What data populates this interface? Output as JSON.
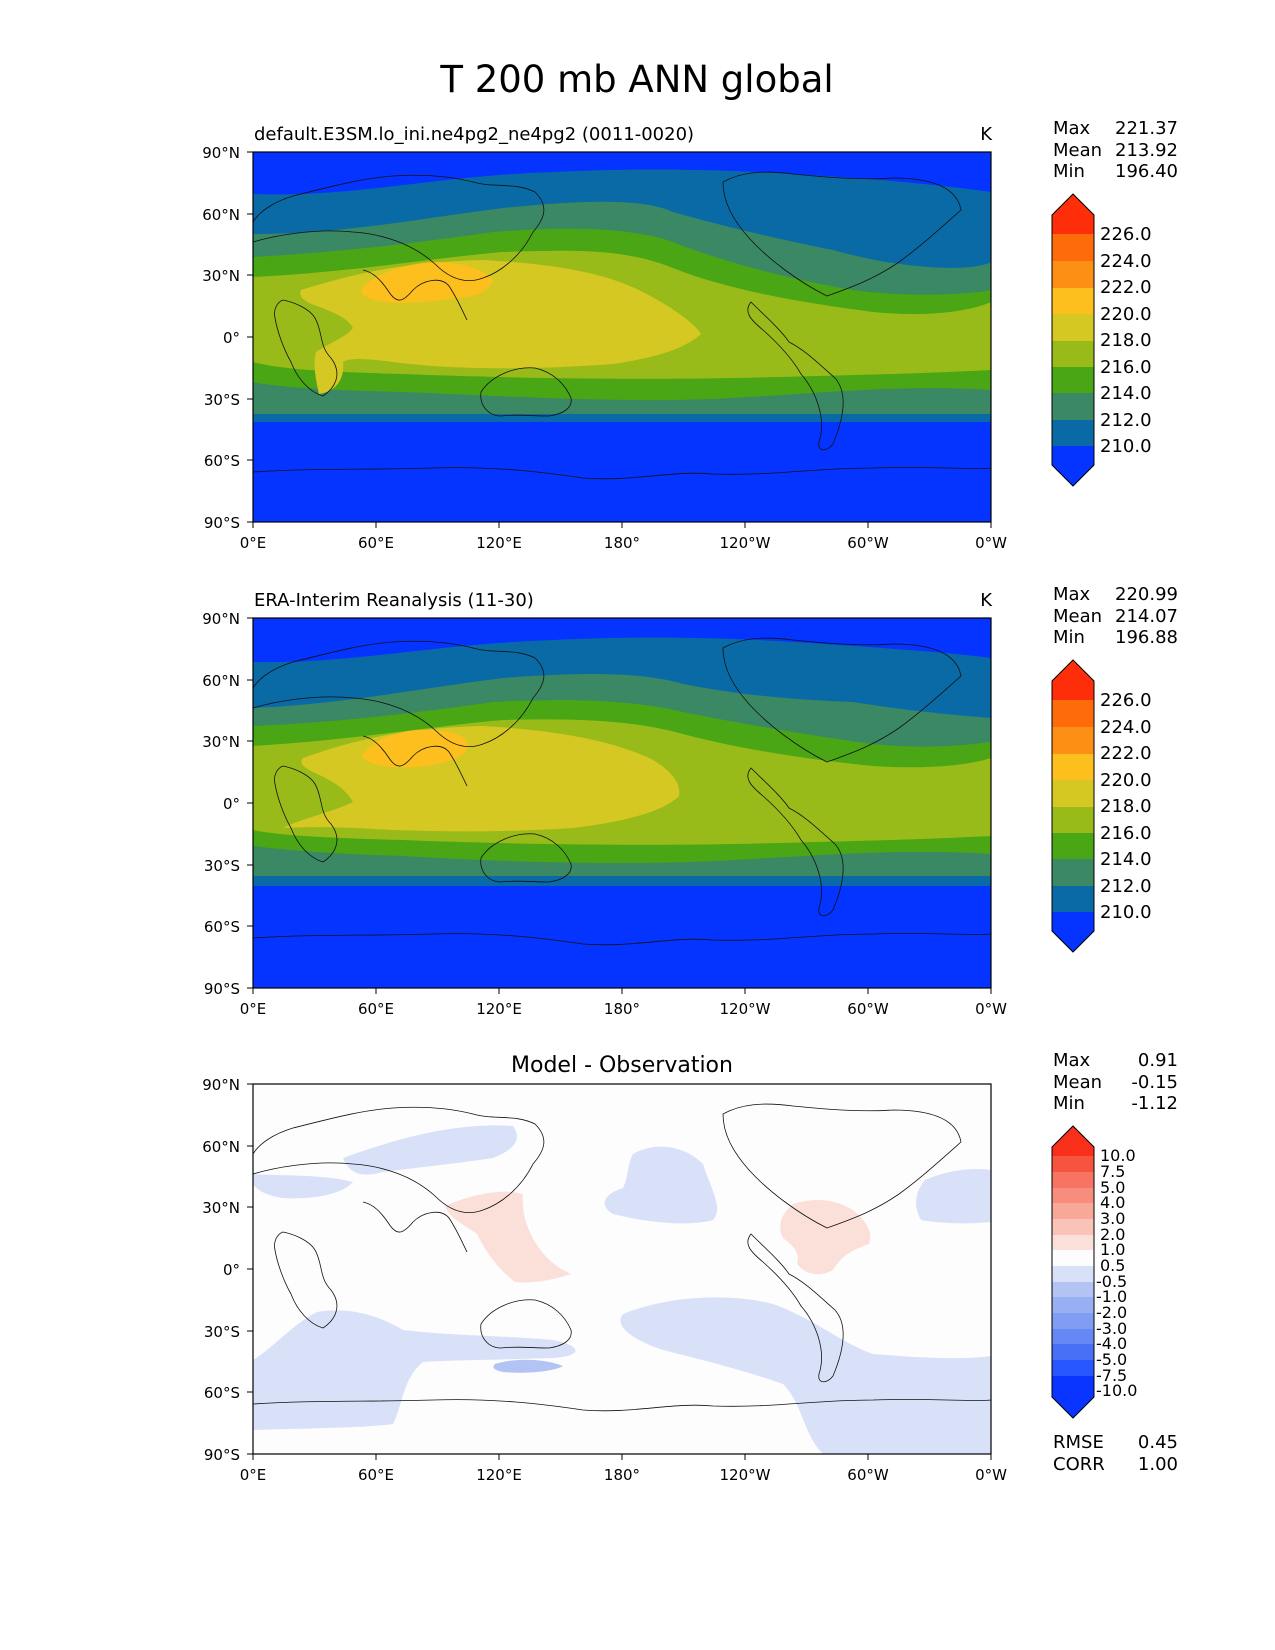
{
  "figure": {
    "title": "T 200 mb ANN global"
  },
  "chart_data": [
    {
      "type": "heatmap",
      "panel": "model",
      "title": "default.E3SM.lo_ini.ne4pg2_ne4pg2 (0011-0020)",
      "units": "K",
      "stats": [
        {
          "label": "Max",
          "value": "221.37"
        },
        {
          "label": "Mean",
          "value": "213.92"
        },
        {
          "label": "Min",
          "value": "196.40"
        }
      ],
      "x_ticks": [
        "0°E",
        "60°E",
        "120°E",
        "180°",
        "120°W",
        "60°W",
        "0°W"
      ],
      "y_ticks": [
        "90°N",
        "60°N",
        "30°N",
        "0°",
        "30°S",
        "60°S",
        "90°S"
      ],
      "xlim": [
        0,
        360
      ],
      "ylim": [
        -90,
        90
      ],
      "colorbar": {
        "levels": [
          210,
          212,
          214,
          216,
          218,
          220,
          222,
          224,
          226
        ],
        "labels": [
          "226.0",
          "224.0",
          "222.0",
          "220.0",
          "218.0",
          "216.0",
          "214.0",
          "212.0",
          "210.0"
        ],
        "extend": "both"
      }
    },
    {
      "type": "heatmap",
      "panel": "observation",
      "title": "ERA-Interim Reanalysis (11-30)",
      "units": "K",
      "stats": [
        {
          "label": "Max",
          "value": "220.99"
        },
        {
          "label": "Mean",
          "value": "214.07"
        },
        {
          "label": "Min",
          "value": "196.88"
        }
      ],
      "x_ticks": [
        "0°E",
        "60°E",
        "120°E",
        "180°",
        "120°W",
        "60°W",
        "0°W"
      ],
      "y_ticks": [
        "90°N",
        "60°N",
        "30°N",
        "0°",
        "30°S",
        "60°S",
        "90°S"
      ],
      "xlim": [
        0,
        360
      ],
      "ylim": [
        -90,
        90
      ],
      "colorbar": {
        "levels": [
          210,
          212,
          214,
          216,
          218,
          220,
          222,
          224,
          226
        ],
        "labels": [
          "226.0",
          "224.0",
          "222.0",
          "220.0",
          "218.0",
          "216.0",
          "214.0",
          "212.0",
          "210.0"
        ],
        "extend": "both"
      }
    },
    {
      "type": "heatmap",
      "panel": "difference",
      "title": "Model - Observation",
      "stats": [
        {
          "label": "Max",
          "value": "0.91"
        },
        {
          "label": "Mean",
          "value": "-0.15"
        },
        {
          "label": "Min",
          "value": "-1.12"
        }
      ],
      "metrics": [
        {
          "label": "RMSE",
          "value": "0.45"
        },
        {
          "label": "CORR",
          "value": "1.00"
        }
      ],
      "x_ticks": [
        "0°E",
        "60°E",
        "120°E",
        "180°",
        "120°W",
        "60°W",
        "0°W"
      ],
      "y_ticks": [
        "90°N",
        "60°N",
        "30°N",
        "0°",
        "30°S",
        "60°S",
        "90°S"
      ],
      "xlim": [
        0,
        360
      ],
      "ylim": [
        -90,
        90
      ],
      "colorbar": {
        "levels": [
          -10,
          -7.5,
          -5,
          -4,
          -3,
          -2,
          -1,
          -0.5,
          0.5,
          1,
          2,
          3,
          4,
          5,
          7.5,
          10
        ],
        "labels": [
          "10.0",
          "7.5",
          "5.0",
          "4.0",
          "3.0",
          "2.0",
          "1.0",
          "0.5",
          "-0.5",
          "-1.0",
          "-2.0",
          "-3.0",
          "-4.0",
          "-5.0",
          "-7.5",
          "-10.0"
        ],
        "extend": "both"
      }
    }
  ],
  "colors": {
    "model_obs_palette": [
      "#0533ff",
      "#0a6aa5",
      "#3a8864",
      "#4aa614",
      "#99bb1a",
      "#d6c823",
      "#fcbf1e",
      "#fd8f14",
      "#fd6b0a",
      "#ff2e0a"
    ],
    "diff_palette": [
      "#0a34ff",
      "#2856ff",
      "#4870f6",
      "#6588f4",
      "#7f9df3",
      "#98aff3",
      "#b3c3f3",
      "#d9e1f9",
      "#fdfdfd",
      "#fbe0da",
      "#f9c3b7",
      "#f8a898",
      "#f78e7d",
      "#f77362",
      "#f7543f",
      "#f82f1a"
    ]
  }
}
